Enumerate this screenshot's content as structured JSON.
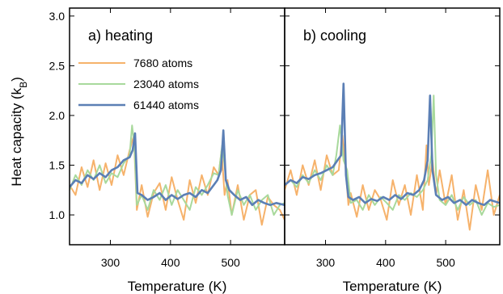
{
  "chart_data": {
    "type": "line",
    "ylabel": "Heat capacity (k",
    "ylabel_sub": "B",
    "ylabel_close": ")",
    "ylim": [
      0.7,
      3.08
    ],
    "yticks": [
      "1.0",
      "1.5",
      "2.0",
      "2.5",
      "3.0"
    ],
    "grid": false,
    "legend_position": "upper-left",
    "colors": {
      "7680 atoms": "#f6b26b",
      "23040 atoms": "#a8d99c",
      "61440 atoms": "#5b7fb5"
    },
    "panels": [
      {
        "title": "a) heating",
        "xlabel": "Temperature (K)",
        "xlim": [
          232,
          590
        ],
        "xticks": [
          "300",
          "400",
          "500"
        ],
        "series": [
          {
            "name": "7680 atoms",
            "color": "#f6b26b",
            "x": [
              232,
              242,
              252,
              262,
              272,
              282,
              292,
              302,
              312,
              322,
              332,
              339,
              344,
              352,
              362,
              372,
              382,
              392,
              402,
              412,
              422,
              432,
              442,
              452,
              462,
              472,
              480,
              485,
              490,
              495,
              502,
              512,
              522,
              532,
              542,
              552,
              562,
              572,
              582,
              590
            ],
            "y": [
              1.3,
              1.2,
              1.48,
              1.28,
              1.55,
              1.25,
              1.52,
              1.3,
              1.6,
              1.4,
              1.65,
              1.8,
              1.05,
              1.3,
              0.98,
              1.22,
              1.32,
              1.05,
              1.38,
              1.15,
              0.95,
              1.35,
              1.12,
              1.4,
              1.2,
              1.48,
              1.4,
              1.65,
              1.2,
              1.35,
              1.0,
              1.3,
              0.95,
              1.2,
              1.25,
              0.9,
              1.18,
              1.1,
              1.05,
              0.95
            ]
          },
          {
            "name": "23040 atoms",
            "color": "#a8d99c",
            "x": [
              232,
              242,
              252,
              262,
              272,
              282,
              292,
              302,
              312,
              322,
              332,
              336,
              340,
              344,
              352,
              362,
              372,
              382,
              392,
              402,
              412,
              422,
              432,
              442,
              452,
              462,
              472,
              480,
              486,
              490,
              495,
              502,
              512,
              522,
              532,
              542,
              552,
              562,
              572,
              582,
              590
            ],
            "y": [
              1.25,
              1.4,
              1.3,
              1.45,
              1.35,
              1.5,
              1.32,
              1.42,
              1.38,
              1.52,
              1.6,
              1.9,
              1.7,
              1.1,
              1.2,
              1.05,
              1.25,
              1.15,
              1.3,
              1.1,
              1.25,
              1.15,
              1.05,
              1.28,
              1.2,
              1.3,
              1.42,
              1.4,
              1.7,
              1.5,
              1.2,
              1.0,
              1.25,
              1.1,
              1.2,
              1.05,
              1.15,
              1.2,
              1.0,
              1.1,
              1.12
            ]
          },
          {
            "name": "61440 atoms",
            "color": "#5b7fb5",
            "x": [
              232,
              242,
              252,
              262,
              272,
              282,
              292,
              302,
              312,
              322,
              332,
              337,
              341,
              345,
              352,
              362,
              372,
              382,
              392,
              402,
              412,
              422,
              432,
              442,
              452,
              462,
              472,
              478,
              484,
              488,
              492,
              498,
              506,
              516,
              526,
              536,
              546,
              556,
              566,
              576,
              590
            ],
            "y": [
              1.28,
              1.35,
              1.32,
              1.4,
              1.36,
              1.42,
              1.38,
              1.45,
              1.48,
              1.55,
              1.58,
              1.65,
              1.82,
              1.22,
              1.2,
              1.15,
              1.18,
              1.22,
              1.15,
              1.2,
              1.16,
              1.2,
              1.22,
              1.18,
              1.25,
              1.22,
              1.3,
              1.35,
              1.45,
              1.85,
              1.35,
              1.25,
              1.2,
              1.15,
              1.18,
              1.1,
              1.15,
              1.12,
              1.1,
              1.12,
              1.1
            ]
          }
        ]
      },
      {
        "title": "b) cooling",
        "xlabel": "Temperature (K)",
        "xlim": [
          232,
          590
        ],
        "xticks": [
          "300",
          "400",
          "500"
        ],
        "series": [
          {
            "name": "7680 atoms",
            "color": "#f6b26b",
            "x": [
              232,
              242,
              252,
              262,
              272,
              282,
              292,
              302,
              312,
              322,
              328,
              333,
              338,
              342,
              352,
              362,
              372,
              382,
              392,
              402,
              412,
              422,
              432,
              442,
              452,
              462,
              468,
              472,
              478,
              484,
              490,
              500,
              510,
              520,
              530,
              540,
              550,
              560,
              570,
              580,
              590
            ],
            "y": [
              1.25,
              1.45,
              1.2,
              1.5,
              1.3,
              1.55,
              1.25,
              1.6,
              1.4,
              1.45,
              1.8,
              1.5,
              1.1,
              1.22,
              0.98,
              1.3,
              1.05,
              1.25,
              1.15,
              0.95,
              1.35,
              1.1,
              1.3,
              1.0,
              1.4,
              1.05,
              1.7,
              1.3,
              1.55,
              1.2,
              1.45,
              1.1,
              1.4,
              0.95,
              1.25,
              0.85,
              1.3,
              1.05,
              1.45,
              1.0,
              1.2
            ]
          },
          {
            "name": "23040 atoms",
            "color": "#a8d99c",
            "x": [
              232,
              242,
              252,
              262,
              272,
              282,
              292,
              302,
              312,
              318,
              324,
              330,
              336,
              342,
              352,
              362,
              372,
              382,
              392,
              402,
              412,
              422,
              432,
              442,
              452,
              462,
              470,
              476,
              480,
              484,
              490,
              500,
              510,
              520,
              530,
              540,
              550,
              560,
              570,
              580,
              590
            ],
            "y": [
              1.3,
              1.35,
              1.28,
              1.4,
              1.32,
              1.45,
              1.35,
              1.5,
              1.4,
              1.6,
              1.9,
              1.55,
              1.45,
              1.12,
              1.15,
              1.05,
              1.2,
              1.1,
              1.18,
              1.12,
              1.05,
              1.2,
              1.15,
              1.22,
              1.18,
              1.25,
              1.35,
              1.6,
              2.2,
              1.4,
              1.15,
              1.1,
              1.2,
              1.05,
              1.18,
              1.1,
              1.15,
              1.0,
              1.12,
              1.08,
              1.1
            ]
          },
          {
            "name": "61440 atoms",
            "color": "#5b7fb5",
            "x": [
              232,
              242,
              252,
              262,
              272,
              282,
              292,
              302,
              312,
              320,
              326,
              330,
              334,
              338,
              346,
              356,
              366,
              376,
              386,
              396,
              406,
              416,
              426,
              436,
              446,
              456,
              464,
              470,
              474,
              478,
              484,
              494,
              504,
              514,
              524,
              534,
              544,
              554,
              564,
              574,
              590
            ],
            "y": [
              1.3,
              1.35,
              1.32,
              1.38,
              1.36,
              1.4,
              1.42,
              1.45,
              1.48,
              1.55,
              1.6,
              2.32,
              1.4,
              1.18,
              1.15,
              1.18,
              1.12,
              1.16,
              1.14,
              1.18,
              1.15,
              1.2,
              1.16,
              1.22,
              1.2,
              1.25,
              1.35,
              1.55,
              2.2,
              1.45,
              1.2,
              1.15,
              1.18,
              1.12,
              1.15,
              1.1,
              1.15,
              1.12,
              1.1,
              1.15,
              1.12
            ]
          }
        ]
      }
    ]
  }
}
